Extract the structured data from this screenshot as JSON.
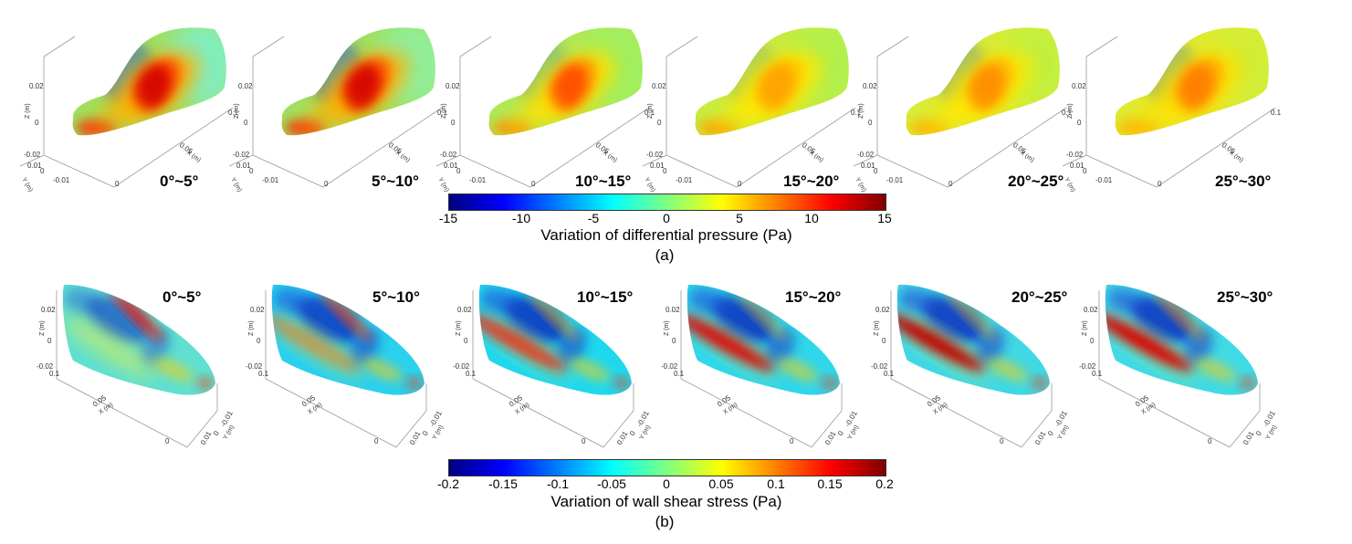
{
  "row_a": {
    "panels": [
      {
        "label": "0°~5°"
      },
      {
        "label": "5°~10°"
      },
      {
        "label": "10°~15°"
      },
      {
        "label": "15°~20°"
      },
      {
        "label": "20°~25°"
      },
      {
        "label": "25°~30°"
      }
    ],
    "axis_ticks": {
      "z1": "0.02",
      "z0": "0",
      "zlabel": "Z (m)",
      "zm": "-0.02",
      "y1": "0.01",
      "y0": "0",
      "ym": "-0.01",
      "ylabel": "Y (m)",
      "xlabel": "X (m)",
      "x1": "0.05",
      "x2": "0.1",
      "x0": "0"
    },
    "colorbar": {
      "ticks": [
        "-15",
        "-10",
        "-5",
        "0",
        "5",
        "10",
        "15"
      ],
      "title": "Variation of differential pressure  (Pa)",
      "colors": [
        "#00007f",
        "#0000ff",
        "#007fff",
        "#00ffff",
        "#7fff7f",
        "#ffff00",
        "#ff7f00",
        "#ff0000",
        "#7f0000"
      ]
    },
    "caption": "(a)"
  },
  "row_b": {
    "panels": [
      {
        "label": "0°~5°"
      },
      {
        "label": "5°~10°"
      },
      {
        "label": "10°~15°"
      },
      {
        "label": "15°~20°"
      },
      {
        "label": "20°~25°"
      },
      {
        "label": "25°~30°"
      }
    ],
    "axis_ticks": {
      "z1": "0.02",
      "z0": "0",
      "zlabel": "Z (m)",
      "zm": "-0.02",
      "x1": "0.05",
      "xlabel": "X (m)",
      "x0": "0",
      "y1": "-0.01",
      "y0": "0",
      "y2": "0.01",
      "ylabel": "Y (m)",
      "xm": "0.1"
    },
    "colorbar": {
      "ticks": [
        "-0.2",
        "-0.15",
        "-0.1",
        "-0.05",
        "0",
        "0.05",
        "0.1",
        "0.15",
        "0.2"
      ],
      "title": "Variation of wall shear stress  (Pa)",
      "colors": [
        "#00007f",
        "#0000ff",
        "#007fff",
        "#00ffff",
        "#7fff7f",
        "#ffff00",
        "#ff7f00",
        "#ff0000",
        "#7f0000"
      ]
    },
    "caption": "(b)"
  }
}
